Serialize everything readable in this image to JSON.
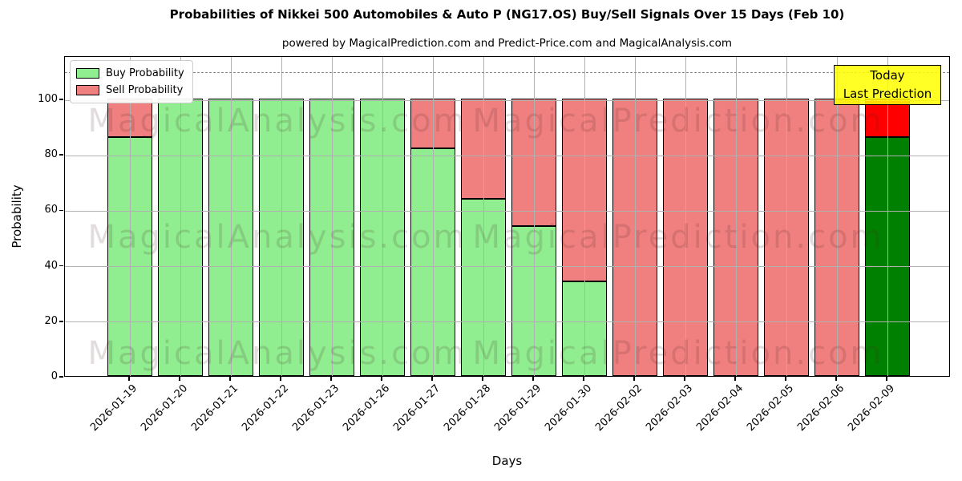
{
  "title": "Probabilities of Nikkei 500 Automobiles & Auto P (NG17.OS) Buy/Sell Signals Over 15 Days (Feb 10)",
  "subtitle": "powered by MagicalPrediction.com and Predict-Price.com and MagicalAnalysis.com",
  "legend": {
    "items": [
      {
        "label": "Buy Probability",
        "color": "#90ee90"
      },
      {
        "label": "Sell Probability",
        "color": "#f08080"
      }
    ]
  },
  "annotation": {
    "line1": "Today",
    "line2": "Last Prediction",
    "bg": "#ffff00"
  },
  "watermarks": {
    "left_text": "MagicalAnalysis.com",
    "right_text": "MagicalPrediction.com",
    "color": "rgba(80,40,40,0.16)"
  },
  "colors": {
    "buy_fill": "#90ee90",
    "sell_fill": "#f08080",
    "today_buy_fill": "#008000",
    "today_sell_fill": "#ff0000",
    "bar_edge": "#000000",
    "grid": "#b0b0b0",
    "dashed_line": "#8a8a8a",
    "annotation_bg": "rgba(255,255,0,0.85)"
  },
  "chart_data": {
    "type": "bar",
    "stacked": true,
    "title": "Probabilities of Nikkei 500 Automobiles & Auto P (NG17.OS) Buy/Sell Signals Over 15 Days (Feb 10)",
    "xlabel": "Days",
    "ylabel": "Probability",
    "ylim": [
      0,
      115.6
    ],
    "yticks": [
      0,
      20,
      40,
      60,
      80,
      100
    ],
    "dashed_line_y": 110,
    "grid": true,
    "legend_position": "upper left",
    "categories": [
      "2026-01-19",
      "2026-01-20",
      "2026-01-21",
      "2026-01-22",
      "2026-01-23",
      "2026-01-26",
      "2026-01-27",
      "2026-01-28",
      "2026-01-29",
      "2026-01-30",
      "2026-02-02",
      "2026-02-03",
      "2026-02-04",
      "2026-02-05",
      "2026-02-06",
      "2026-02-09"
    ],
    "series": [
      {
        "name": "Buy Probability",
        "values": [
          86,
          100,
          100,
          100,
          100,
          100,
          82,
          64,
          54,
          34,
          0,
          0,
          0,
          0,
          0,
          86
        ]
      },
      {
        "name": "Sell Probability",
        "values": [
          14,
          0,
          0,
          0,
          0,
          0,
          18,
          36,
          46,
          66,
          100,
          100,
          100,
          100,
          100,
          14
        ]
      }
    ],
    "highlight_last_bar": true
  }
}
